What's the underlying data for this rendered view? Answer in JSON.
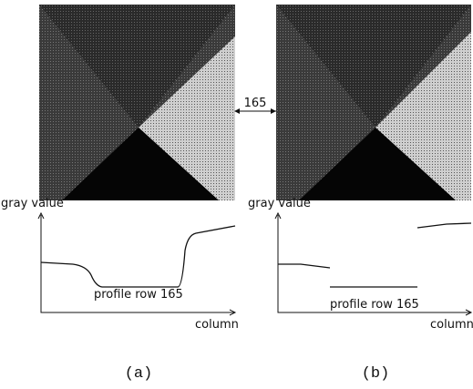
{
  "figure": {
    "panels": [
      {
        "y_label": "gray value",
        "x_label": "column",
        "profile_label": "profile row 165",
        "caption": "(a)"
      },
      {
        "y_label": "gray value",
        "x_label": "column",
        "profile_label": "profile row 165",
        "caption": "(b)"
      }
    ],
    "row_marker": "165"
  }
}
